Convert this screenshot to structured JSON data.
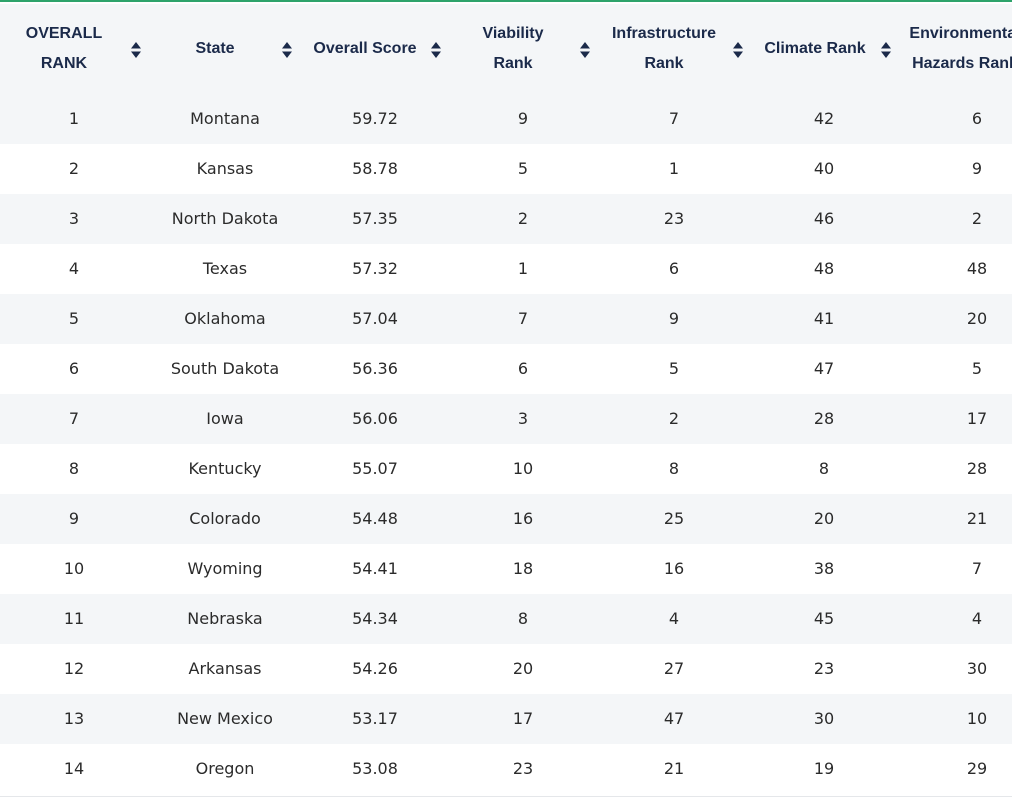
{
  "table": {
    "columns": [
      {
        "key": "rank",
        "label": "OVERALL\nRANK"
      },
      {
        "key": "state",
        "label": "State"
      },
      {
        "key": "score",
        "label": "Overall Score"
      },
      {
        "key": "viability",
        "label": "Viability\nRank"
      },
      {
        "key": "infra",
        "label": "Infrastructure\nRank"
      },
      {
        "key": "climate",
        "label": "Climate Rank"
      },
      {
        "key": "env",
        "label": "Environmental\nHazards Rank"
      }
    ],
    "rows": [
      [
        "1",
        "Montana",
        "59.72",
        "9",
        "7",
        "42",
        "6"
      ],
      [
        "2",
        "Kansas",
        "58.78",
        "5",
        "1",
        "40",
        "9"
      ],
      [
        "3",
        "North Dakota",
        "57.35",
        "2",
        "23",
        "46",
        "2"
      ],
      [
        "4",
        "Texas",
        "57.32",
        "1",
        "6",
        "48",
        "48"
      ],
      [
        "5",
        "Oklahoma",
        "57.04",
        "7",
        "9",
        "41",
        "20"
      ],
      [
        "6",
        "South Dakota",
        "56.36",
        "6",
        "5",
        "47",
        "5"
      ],
      [
        "7",
        "Iowa",
        "56.06",
        "3",
        "2",
        "28",
        "17"
      ],
      [
        "8",
        "Kentucky",
        "55.07",
        "10",
        "8",
        "8",
        "28"
      ],
      [
        "9",
        "Colorado",
        "54.48",
        "16",
        "25",
        "20",
        "21"
      ],
      [
        "10",
        "Wyoming",
        "54.41",
        "18",
        "16",
        "38",
        "7"
      ],
      [
        "11",
        "Nebraska",
        "54.34",
        "8",
        "4",
        "45",
        "4"
      ],
      [
        "12",
        "Arkansas",
        "54.26",
        "20",
        "27",
        "23",
        "30"
      ],
      [
        "13",
        "New Mexico",
        "53.17",
        "17",
        "47",
        "30",
        "10"
      ],
      [
        "14",
        "Oregon",
        "53.08",
        "23",
        "21",
        "19",
        "29"
      ]
    ]
  },
  "colors": {
    "accent_border": "#2ea36b",
    "header_text": "#1b2a4a",
    "stripe": "#f4f6f8"
  },
  "icons": {
    "sort": "sort-icon"
  }
}
